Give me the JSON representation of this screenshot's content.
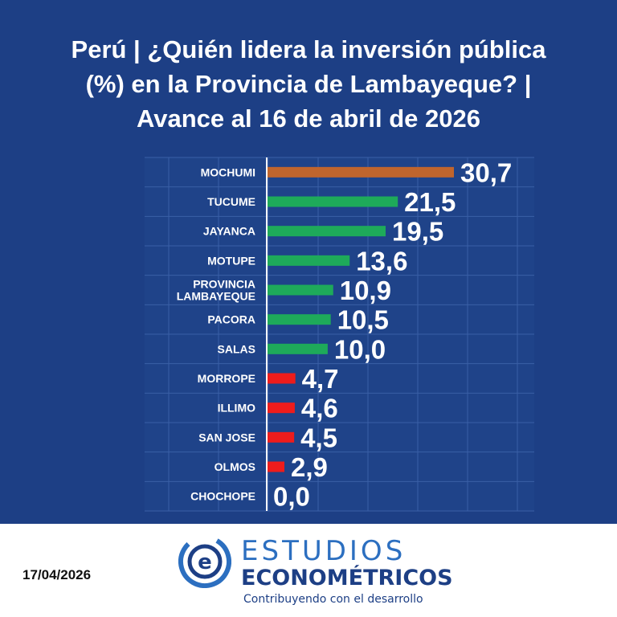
{
  "chart_data": {
    "type": "bar",
    "orientation": "horizontal",
    "title_lines": [
      "Perú | ¿Quién lidera la inversión pública",
      "(%) en la Provincia de Lambayeque? |",
      "Avance al 16 de abril de 2026"
    ],
    "categories": [
      [
        "MOCHUMI"
      ],
      [
        "TUCUME"
      ],
      [
        "JAYANCA"
      ],
      [
        "MOTUPE"
      ],
      [
        "PROVINCIA",
        "LAMBAYEQUE"
      ],
      [
        "PACORA"
      ],
      [
        "SALAS"
      ],
      [
        "MORROPE"
      ],
      [
        "ILLIMO"
      ],
      [
        "SAN JOSE"
      ],
      [
        "OLMOS"
      ],
      [
        "CHOCHOPE"
      ]
    ],
    "values": [
      30.7,
      21.5,
      19.5,
      13.6,
      10.9,
      10.5,
      10.0,
      4.7,
      4.6,
      4.5,
      2.9,
      0.0
    ],
    "value_labels": [
      "30,7",
      "21,5",
      "19,5",
      "13,6",
      "10,9",
      "10,5",
      "10,0",
      "4,7",
      "4,6",
      "4,5",
      "2,9",
      "0,0"
    ],
    "bar_colors": [
      "#c0652d",
      "#1eaa5a",
      "#1eaa5a",
      "#1eaa5a",
      "#1eaa5a",
      "#1eaa5a",
      "#1eaa5a",
      "#ee1c1c",
      "#ee1c1c",
      "#ee1c1c",
      "#ee1c1c",
      "#ee1c1c"
    ],
    "xlim": [
      0,
      30.7
    ],
    "xlabel": "",
    "ylabel": "",
    "grid": true
  },
  "footer": {
    "date": "17/04/2026",
    "brand_top": "ESTUDIOS",
    "brand_bottom": "ECONOMÉTRICOS",
    "tagline": "Contribuyendo con el desarrollo"
  },
  "colors": {
    "background": "#1d3f85",
    "plot_background": "#1f4389",
    "grid": "#3a5fa6",
    "text": "#ffffff",
    "brand_light": "#2c6fc0",
    "brand_dark": "#1d3f85"
  }
}
